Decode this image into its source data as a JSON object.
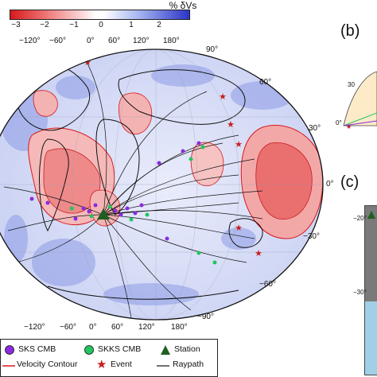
{
  "colorbar": {
    "title": "% δVs",
    "ticks": [
      "−3",
      "−2",
      "−1",
      "0",
      "1",
      "2"
    ]
  },
  "map": {
    "top_lon_labels": [
      "−120°",
      "−60°",
      "0°",
      "60°",
      "120°",
      "180°"
    ],
    "bottom_lon_labels": [
      "−120°",
      "−60°",
      "0°",
      "60°",
      "120°",
      "180°"
    ],
    "right_lat_labels": [
      "90°",
      "60°",
      "30°",
      "0°",
      "−30°",
      "−60°",
      "−90°"
    ]
  },
  "legend": {
    "sks": "SKS CMB",
    "skks": "SKKS CMB",
    "station": "Station",
    "contour": "Velocity Contour",
    "event": "Event",
    "raypath": "Raypath"
  },
  "panels": {
    "b": {
      "letter": "(b)",
      "labels": [
        "30",
        "0°"
      ]
    },
    "c": {
      "letter": "(c)",
      "labels": [
        "−20°",
        "−30°"
      ]
    }
  },
  "colors": {
    "slow": "#d7191c",
    "fast": "#2b35c8",
    "sks": "#8a2be2",
    "skks": "#22c55e",
    "station": "#1f5f1f",
    "event": "#c81e1e"
  }
}
